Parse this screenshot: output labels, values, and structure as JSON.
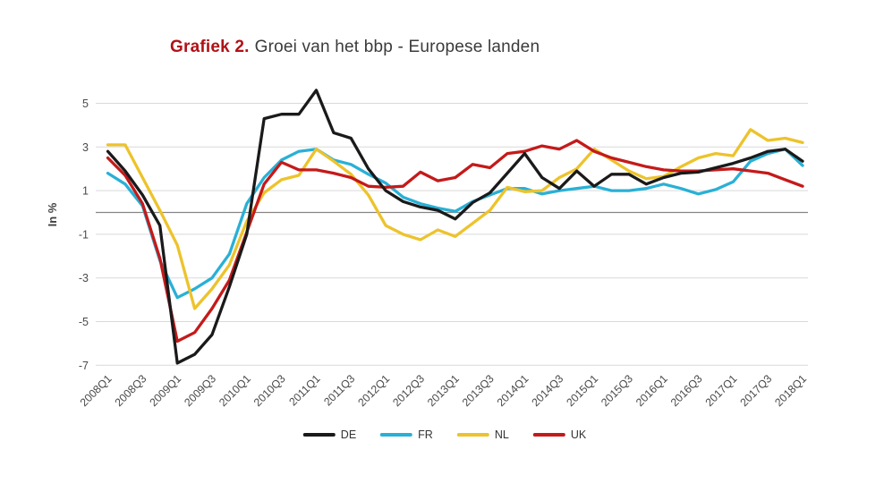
{
  "header": {
    "title_prefix": "Grafiek 2.",
    "title_text": "Groei van het bbp - Europese landen"
  },
  "axes": {
    "y_label": "In %",
    "y_tick_labels": [
      "5",
      "3",
      "1",
      "-1",
      "-3",
      "-5",
      "-7"
    ]
  },
  "legend": [
    "DE",
    "FR",
    "NL",
    "UK"
  ],
  "colors": {
    "title_accent": "#b11116",
    "grid": "#d9d9d9",
    "zero_line": "#858585",
    "tick_text": "#4a4a4a",
    "de": "#1a1a1a",
    "fr": "#29b0d6",
    "nl": "#edc32b",
    "uk": "#c41a1a"
  },
  "chart_data": {
    "type": "line",
    "title": "Grafiek 2. Groei van het bbp - Europese landen",
    "xlabel": "",
    "ylabel": "In %",
    "ylim": [
      -7.8,
      6.2
    ],
    "yticks": [
      5,
      3,
      1,
      -1,
      -3,
      -5,
      -7
    ],
    "grid": "horizontal-only",
    "zero_line": true,
    "legend_position": "bottom",
    "x_label_every": 2,
    "categories": [
      "2008Q1",
      "2008Q2",
      "2008Q3",
      "2008Q4",
      "2009Q1",
      "2009Q2",
      "2009Q3",
      "2009Q4",
      "2010Q1",
      "2010Q2",
      "2010Q3",
      "2010Q4",
      "2011Q1",
      "2011Q2",
      "2011Q3",
      "2011Q4",
      "2012Q1",
      "2012Q2",
      "2012Q3",
      "2012Q4",
      "2013Q1",
      "2013Q2",
      "2013Q3",
      "2013Q4",
      "2014Q1",
      "2014Q2",
      "2014Q3",
      "2014Q4",
      "2015Q1",
      "2015Q2",
      "2015Q3",
      "2015Q4",
      "2016Q1",
      "2016Q2",
      "2016Q3",
      "2016Q4",
      "2017Q1",
      "2017Q2",
      "2017Q3",
      "2017Q4",
      "2018Q1"
    ],
    "series": [
      {
        "name": "DE",
        "color": "#1a1a1a",
        "values": [
          2.8,
          1.9,
          0.8,
          -0.6,
          -6.9,
          -6.5,
          -5.6,
          -3.4,
          -1.0,
          4.3,
          4.5,
          4.5,
          5.6,
          3.65,
          3.4,
          2.0,
          1.0,
          0.5,
          0.25,
          0.1,
          -0.3,
          0.45,
          0.9,
          1.8,
          2.7,
          1.6,
          1.1,
          1.9,
          1.2,
          1.75,
          1.75,
          1.3,
          1.6,
          1.8,
          1.85,
          2.05,
          2.25,
          2.5,
          2.8,
          2.9,
          2.35
        ]
      },
      {
        "name": "FR",
        "color": "#29b0d6",
        "values": [
          1.8,
          1.3,
          0.3,
          -2.2,
          -3.9,
          -3.5,
          -3.0,
          -1.9,
          0.4,
          1.6,
          2.4,
          2.8,
          2.9,
          2.4,
          2.2,
          1.75,
          1.35,
          0.7,
          0.4,
          0.2,
          0.05,
          0.5,
          0.8,
          1.1,
          1.1,
          0.85,
          1.0,
          1.1,
          1.2,
          1.0,
          1.0,
          1.1,
          1.3,
          1.1,
          0.85,
          1.05,
          1.4,
          2.35,
          2.7,
          2.9,
          2.15
        ]
      },
      {
        "name": "NL",
        "color": "#edc32b",
        "values": [
          3.1,
          3.1,
          1.6,
          0.1,
          -1.5,
          -4.4,
          -3.5,
          -2.4,
          -0.4,
          0.9,
          1.5,
          1.7,
          2.9,
          2.35,
          1.75,
          0.8,
          -0.6,
          -1.0,
          -1.25,
          -0.8,
          -1.1,
          -0.5,
          0.1,
          1.15,
          0.95,
          1.0,
          1.6,
          2.0,
          2.9,
          2.4,
          1.9,
          1.55,
          1.65,
          2.1,
          2.5,
          2.7,
          2.6,
          3.8,
          3.3,
          3.4,
          3.2
        ]
      },
      {
        "name": "UK",
        "color": "#c41a1a",
        "values": [
          2.5,
          1.7,
          0.4,
          -2.1,
          -5.9,
          -5.5,
          -4.4,
          -3.1,
          -0.9,
          1.3,
          2.3,
          1.95,
          1.95,
          1.8,
          1.6,
          1.2,
          1.15,
          1.2,
          1.85,
          1.45,
          1.6,
          2.2,
          2.05,
          2.7,
          2.8,
          3.05,
          2.9,
          3.3,
          2.8,
          2.5,
          2.3,
          2.1,
          1.95,
          1.9,
          1.9,
          1.95,
          2.0,
          1.9,
          1.8,
          1.5,
          1.2
        ]
      }
    ]
  }
}
